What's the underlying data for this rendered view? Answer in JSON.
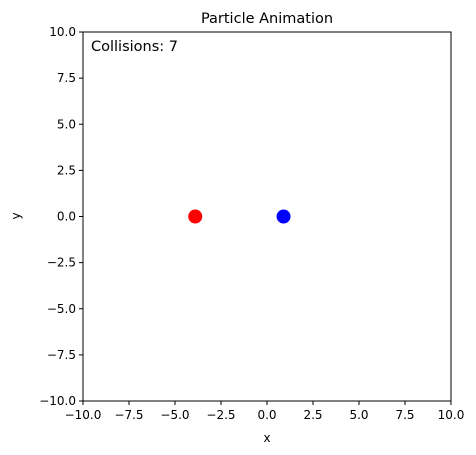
{
  "chart_data": {
    "type": "scatter",
    "title": "Particle Animation",
    "xlabel": "x",
    "ylabel": "y",
    "xlim": [
      -10,
      10
    ],
    "ylim": [
      -10,
      10
    ],
    "grid": false,
    "xticks": [
      -10.0,
      -7.5,
      -5.0,
      -2.5,
      0.0,
      2.5,
      5.0,
      7.5,
      10.0
    ],
    "yticks": [
      -10.0,
      -7.5,
      -5.0,
      -2.5,
      0.0,
      2.5,
      5.0,
      7.5,
      10.0
    ],
    "xtick_labels": [
      "−10.0",
      "−7.5",
      "−5.0",
      "−2.5",
      "0.0",
      "2.5",
      "5.0",
      "7.5",
      "10.0"
    ],
    "ytick_labels": [
      "−10.0",
      "−7.5",
      "−5.0",
      "−2.5",
      "0.0",
      "2.5",
      "5.0",
      "7.5",
      "10.0"
    ],
    "points": [
      {
        "x": -3.9,
        "y": 0.0,
        "color": "#ff0000"
      },
      {
        "x": 0.9,
        "y": 0.0,
        "color": "#0000ff"
      }
    ],
    "annotation": "Collisions: 7"
  }
}
